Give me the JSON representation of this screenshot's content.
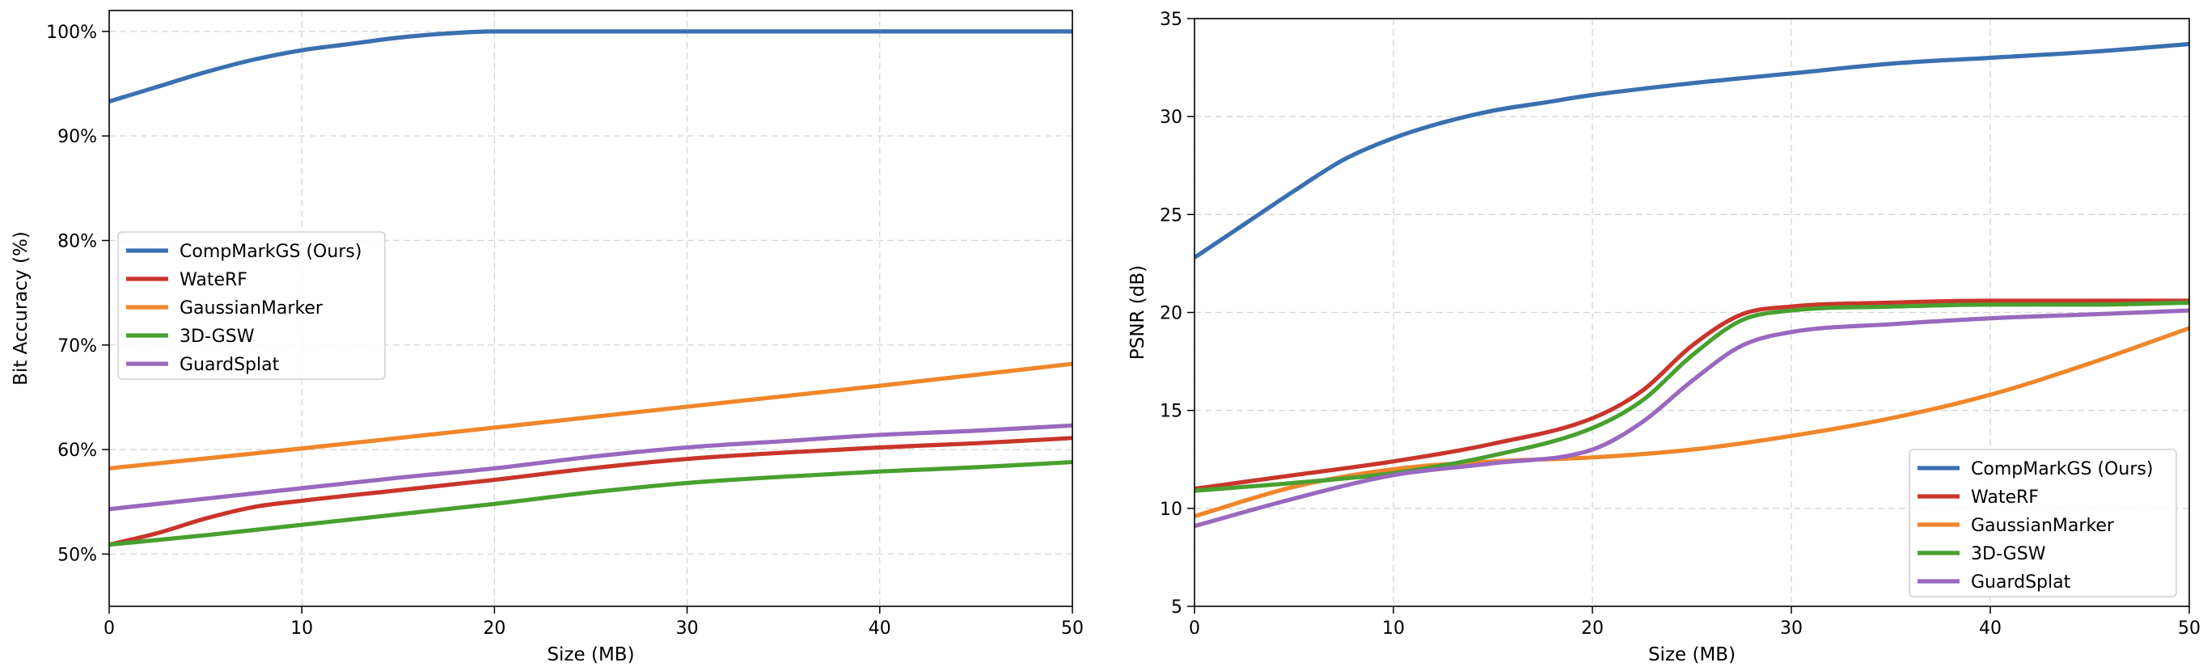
{
  "chart_data": [
    {
      "type": "line",
      "title": "",
      "xlabel": "Size (MB)",
      "ylabel": "Bit Accuracy (%)",
      "xlim": [
        0,
        50
      ],
      "ylim": [
        45,
        102
      ],
      "xticks": [
        0,
        10,
        20,
        30,
        40,
        50
      ],
      "xtick_labels": [
        "0",
        "10",
        "20",
        "30",
        "40",
        "50"
      ],
      "yticks": [
        50,
        60,
        70,
        80,
        90,
        100
      ],
      "ytick_labels": [
        "50%",
        "60%",
        "70%",
        "80%",
        "90%",
        "100%"
      ],
      "grid": true,
      "legend_position": "center-left",
      "series": [
        {
          "name": "CompMarkGS (Ours)",
          "color": "#3a70b0",
          "x": [
            0,
            2.5,
            5,
            7.5,
            10,
            12.5,
            15,
            17.5,
            20,
            25,
            30,
            35,
            40,
            45,
            50
          ],
          "y": [
            93.3,
            94.7,
            96.1,
            97.3,
            98.2,
            98.8,
            99.4,
            99.8,
            100,
            100,
            100,
            100,
            100,
            100,
            100
          ]
        },
        {
          "name": "WateRF",
          "color": "#c9352b",
          "x": [
            0,
            2.5,
            5,
            7.5,
            10,
            15,
            20,
            25,
            30,
            35,
            40,
            45,
            50
          ],
          "y": [
            50.9,
            52.0,
            53.4,
            54.5,
            55.1,
            56.1,
            57.1,
            58.2,
            59.1,
            59.7,
            60.2,
            60.6,
            61.1
          ]
        },
        {
          "name": "GaussianMarker",
          "color": "#f0862a",
          "x": [
            0,
            10,
            20,
            30,
            40,
            50
          ],
          "y": [
            58.2,
            60.1,
            62.1,
            64.1,
            66.1,
            68.2
          ]
        },
        {
          "name": "3D-GSW",
          "color": "#48a02f",
          "x": [
            0,
            5,
            10,
            15,
            20,
            25,
            30,
            35,
            40,
            45,
            50
          ],
          "y": [
            50.9,
            51.8,
            52.8,
            53.8,
            54.8,
            55.9,
            56.8,
            57.4,
            57.9,
            58.3,
            58.8
          ]
        },
        {
          "name": "GuardSplat",
          "color": "#9a68be",
          "x": [
            0,
            5,
            10,
            15,
            20,
            25,
            30,
            35,
            40,
            45,
            50
          ],
          "y": [
            54.3,
            55.3,
            56.3,
            57.3,
            58.2,
            59.3,
            60.2,
            60.8,
            61.4,
            61.8,
            62.3
          ]
        }
      ]
    },
    {
      "type": "line",
      "title": "",
      "xlabel": "Size (MB)",
      "ylabel": "PSNR (dB)",
      "xlim": [
        0,
        50
      ],
      "ylim": [
        5,
        35
      ],
      "xticks": [
        0,
        10,
        20,
        30,
        40,
        50
      ],
      "xtick_labels": [
        "0",
        "10",
        "20",
        "30",
        "40",
        "50"
      ],
      "yticks": [
        5,
        10,
        15,
        20,
        25,
        30,
        35
      ],
      "ytick_labels": [
        "5",
        "10",
        "15",
        "20",
        "25",
        "30",
        "35"
      ],
      "grid": true,
      "legend_position": "lower-right",
      "series": [
        {
          "name": "CompMarkGS (Ours)",
          "color": "#3a70b0",
          "x": [
            0,
            2.5,
            5,
            7.5,
            10,
            12.5,
            15,
            17.5,
            20,
            25,
            30,
            35,
            40,
            45,
            50
          ],
          "y": [
            22.8,
            24.5,
            26.2,
            27.8,
            28.9,
            29.7,
            30.3,
            30.7,
            31.1,
            31.7,
            32.2,
            32.7,
            33.0,
            33.3,
            33.7
          ]
        },
        {
          "name": "WateRF",
          "color": "#c9352b",
          "x": [
            0,
            5,
            10,
            15,
            20,
            22.5,
            25,
            27.5,
            30,
            35,
            40,
            45,
            50
          ],
          "y": [
            11.0,
            11.7,
            12.4,
            13.3,
            14.6,
            16.0,
            18.3,
            19.9,
            20.3,
            20.5,
            20.6,
            20.6,
            20.6
          ]
        },
        {
          "name": "GaussianMarker",
          "color": "#f0862a",
          "x": [
            0,
            5,
            10,
            15,
            20,
            25,
            30,
            35,
            40,
            45,
            50
          ],
          "y": [
            9.6,
            11.1,
            12.0,
            12.4,
            12.6,
            13.0,
            13.7,
            14.6,
            15.8,
            17.4,
            19.2
          ]
        },
        {
          "name": "3D-GSW",
          "color": "#48a02f",
          "x": [
            0,
            5,
            10,
            15,
            20,
            22.5,
            25,
            27.5,
            30,
            35,
            40,
            45,
            50
          ],
          "y": [
            10.9,
            11.3,
            11.8,
            12.7,
            14.1,
            15.5,
            17.8,
            19.6,
            20.1,
            20.3,
            20.4,
            20.4,
            20.5
          ]
        },
        {
          "name": "GuardSplat",
          "color": "#9a68be",
          "x": [
            0,
            5,
            10,
            15,
            20,
            22.5,
            25,
            27.5,
            30,
            35,
            40,
            45,
            50
          ],
          "y": [
            9.1,
            10.5,
            11.7,
            12.3,
            13.0,
            14.4,
            16.5,
            18.3,
            19.0,
            19.4,
            19.7,
            19.9,
            20.1
          ]
        }
      ]
    }
  ]
}
